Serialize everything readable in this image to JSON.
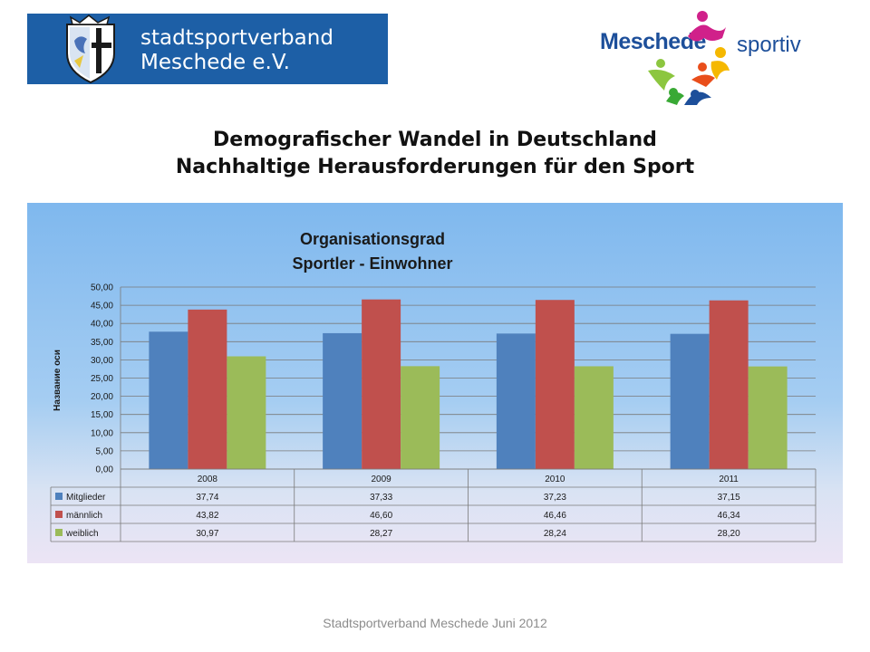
{
  "header": {
    "logo_left_line1": "stadtsportverband",
    "logo_left_line2": "Meschede e.V.",
    "logo_right_word1": "Meschede",
    "logo_right_word2": "sportiv",
    "title_line1": "Demografischer Wandel in Deutschland",
    "title_line2": "Nachhaltige Herausforderungen für den Sport"
  },
  "footer": {
    "text": "Stadtsportverband Meschede Juni 2012"
  },
  "colors": {
    "Mitglieder": "#4f81bd",
    "männlich": "#c0504d",
    "weiblich": "#9bbb59",
    "logo_blue": "#1d5fa6"
  },
  "chart_data": {
    "type": "bar",
    "title": "Organisationsgrad\nSportler - Einwohner",
    "title_line1": "Organisationsgrad",
    "title_line2": "Sportler - Einwohner",
    "ylabel": "Название оси",
    "xlabel": "",
    "categories": [
      "2008",
      "2009",
      "2010",
      "2011"
    ],
    "series": [
      {
        "name": "Mitglieder",
        "values": [
          37.74,
          37.33,
          37.23,
          37.15
        ],
        "labels": [
          "37,74",
          "37,33",
          "37,23",
          "37,15"
        ]
      },
      {
        "name": "männlich",
        "values": [
          43.82,
          46.6,
          46.46,
          46.34
        ],
        "labels": [
          "43,82",
          "46,60",
          "46,46",
          "46,34"
        ]
      },
      {
        "name": "weiblich",
        "values": [
          30.97,
          28.27,
          28.24,
          28.2
        ],
        "labels": [
          "30,97",
          "28,27",
          "28,24",
          "28,20"
        ]
      }
    ],
    "ylim": [
      0,
      50
    ],
    "yticks": [
      "0,00",
      "5,00",
      "10,00",
      "15,00",
      "20,00",
      "25,00",
      "30,00",
      "35,00",
      "40,00",
      "45,00",
      "50,00"
    ],
    "grid": true,
    "legend": "data-table"
  }
}
